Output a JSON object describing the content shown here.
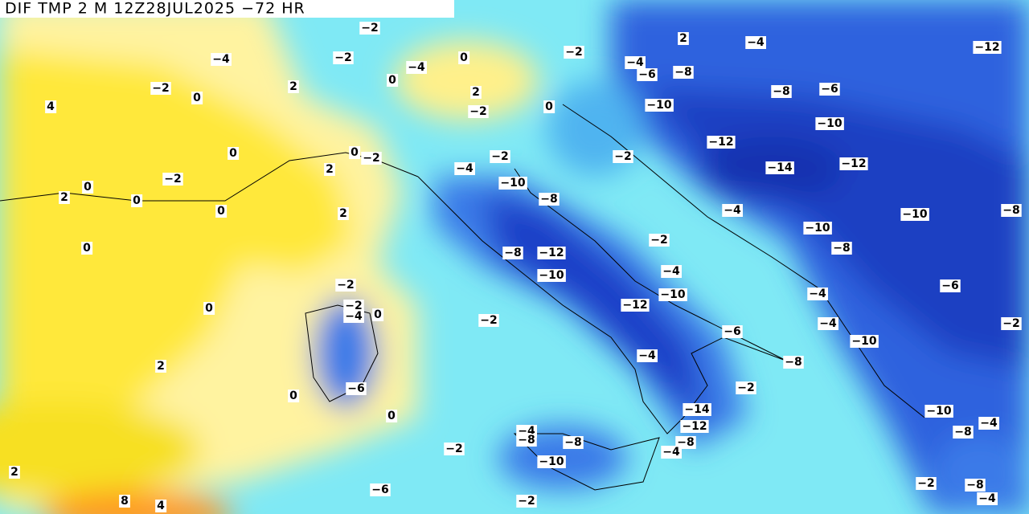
{
  "header": {
    "title": "DIF TMP 2 M 12Z28JUL2025 −72 HR"
  },
  "labels": [
    "−2",
    "−4",
    "−2",
    "0",
    "−4",
    "0",
    "−2",
    "0",
    "2",
    "4",
    "2",
    "−2",
    "0",
    "−2",
    "−4",
    "−6",
    "−8",
    "2",
    "−4",
    "−12",
    "−8",
    "−6",
    "−10",
    "−10",
    "−12",
    "−14",
    "−12",
    "−2",
    "−2",
    "−4",
    "−2",
    "0",
    "0",
    "2",
    "−2",
    "0",
    "2",
    "0",
    "0",
    "−10",
    "−8",
    "2",
    "−4",
    "−10",
    "−8",
    "−10",
    "−8",
    "−2",
    "0",
    "−8",
    "−12",
    "−10",
    "−4",
    "−2",
    "−6",
    "−10",
    "−4",
    "0",
    "−2",
    "−4",
    "0",
    "−12",
    "−2",
    "−4",
    "−2",
    "−6",
    "−4",
    "−10",
    "−8",
    "2",
    "−6",
    "0",
    "−2",
    "0",
    "−14",
    "−12",
    "−10",
    "−4",
    "−4",
    "−8",
    "−8",
    "−8",
    "−8",
    "−2",
    "−4",
    "−10",
    "2",
    "−2",
    "−8",
    "−4",
    "−6",
    "8",
    "4",
    "−2"
  ]
}
